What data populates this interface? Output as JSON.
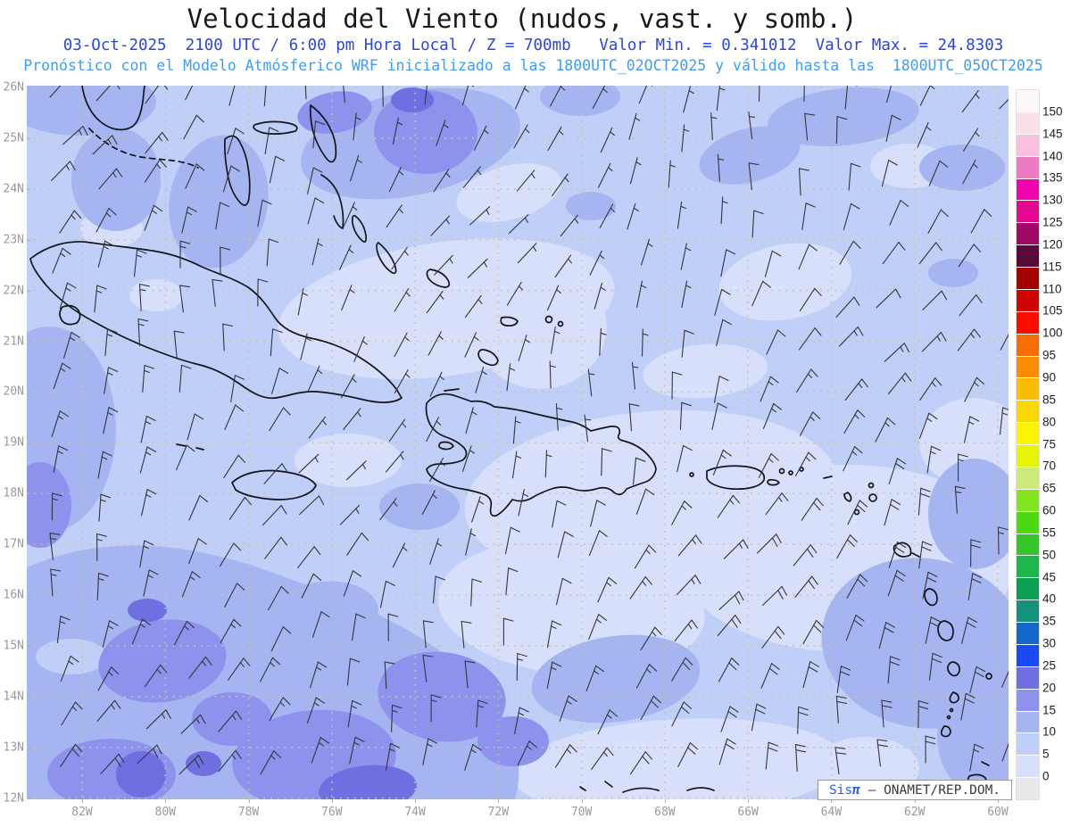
{
  "header": {
    "title": "Velocidad del Viento (nudos, vast. y somb.)",
    "subtitle1": "03-Oct-2025  2100 UTC / 6:00 pm Hora Local / Z = 700mb   Valor Min. = 0.341012  Valor Max. = 24.8303",
    "subtitle2": "Pronóstico con el Modelo Atmósferico WRF inicializado a las 1800UTC_02OCT2025 y válido hasta las  1800UTC_05OCT2025",
    "values": {
      "date": "03-Oct-2025",
      "utc_time": "2100 UTC",
      "local_time": "6:00 pm Hora Local",
      "level": "Z = 700mb",
      "valor_min": "0.341012",
      "valor_max": "24.8303",
      "initialized": "1800UTC_02OCT2025",
      "valid_until": "1800UTC_05OCT2025",
      "model": "WRF"
    }
  },
  "colorbar": {
    "tick_labels": [
      "150",
      "145",
      "140",
      "135",
      "130",
      "125",
      "120",
      "115",
      "110",
      "105",
      "100",
      "95",
      "90",
      "85",
      "80",
      "75",
      "70",
      "65",
      "60",
      "55",
      "50",
      "45",
      "40",
      "35",
      "30",
      "25",
      "20",
      "15",
      "10",
      "5",
      "0"
    ],
    "colors_top_to_bottom": [
      "#fef8fa",
      "#fbe0ea",
      "#f9bfe1",
      "#ef7ac4",
      "#f201ae",
      "#e50790",
      "#a20868",
      "#570a3a",
      "#a40200",
      "#d00300",
      "#fb0e00",
      "#f96c00",
      "#f98d00",
      "#fbbd00",
      "#fad900",
      "#fbf600",
      "#e4f602",
      "#cbec78",
      "#84e51f",
      "#4bda0f",
      "#35c629",
      "#1db74b",
      "#0aa155",
      "#13937e",
      "#1468cc",
      "#1a49f8",
      "#6f6fe2",
      "#8d92ec",
      "#a4b5f2",
      "#bfcff7",
      "#d7dffb",
      "#e8e8e8"
    ]
  },
  "axes": {
    "lat": [
      "26N",
      "25N",
      "24N",
      "23N",
      "22N",
      "21N",
      "20N",
      "19N",
      "18N",
      "17N",
      "16N",
      "15N",
      "14N",
      "13N",
      "12N"
    ],
    "lon": [
      "82W",
      "80W",
      "78W",
      "76W",
      "74W",
      "72W",
      "70W",
      "68W",
      "66W",
      "64W",
      "62W",
      "60W"
    ]
  },
  "map_shades": [
    "#d7dffb",
    "#bfcff7",
    "#a4b5f2",
    "#8d92ec",
    "#6f6fe2"
  ],
  "colors": {
    "title": "#1a1a1a",
    "subtitle1": "#2b46e0",
    "subtitle2": "#3e9ef5",
    "grid": "#cfc09e",
    "coastline": "#14141c",
    "barb": "#34353c",
    "axis_label": "#9a9a9a"
  },
  "credit": {
    "brand_prefix": "Sis",
    "brand_symbol": "π",
    "rest": " – ONAMET/REP.DOM."
  }
}
